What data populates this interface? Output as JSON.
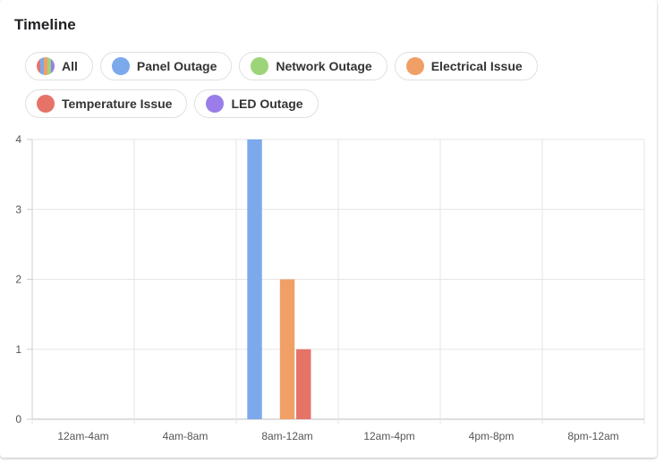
{
  "header": {
    "title": "Timeline"
  },
  "legend": {
    "items": [
      {
        "label": "All",
        "color": "multi"
      },
      {
        "label": "Panel Outage",
        "color": "#7ba9ec"
      },
      {
        "label": "Network Outage",
        "color": "#9dd47a"
      },
      {
        "label": "Electrical Issue",
        "color": "#f0a066"
      },
      {
        "label": "Temperature Issue",
        "color": "#e57368"
      },
      {
        "label": "LED Outage",
        "color": "#9a7de8"
      }
    ]
  },
  "chart_data": {
    "type": "bar",
    "categories": [
      "12am-4am",
      "4am-8am",
      "8am-12am",
      "12am-4pm",
      "4pm-8pm",
      "8pm-12am"
    ],
    "series": [
      {
        "name": "Panel Outage",
        "color": "#7ba9ec",
        "values": [
          0,
          0,
          4,
          0,
          0,
          0
        ]
      },
      {
        "name": "Network Outage",
        "color": "#9dd47a",
        "values": [
          0,
          0,
          0,
          0,
          0,
          0
        ]
      },
      {
        "name": "Electrical Issue",
        "color": "#f0a066",
        "values": [
          0,
          0,
          2,
          0,
          0,
          0
        ]
      },
      {
        "name": "Temperature Issue",
        "color": "#e57368",
        "values": [
          0,
          0,
          1,
          0,
          0,
          0
        ]
      },
      {
        "name": "LED Outage",
        "color": "#9a7de8",
        "values": [
          0,
          0,
          0,
          0,
          0,
          0
        ]
      }
    ],
    "yticks": [
      "0",
      "1",
      "2",
      "3",
      "4"
    ],
    "ylim": [
      0,
      4
    ],
    "grid": true,
    "legend_position": "top-left"
  }
}
